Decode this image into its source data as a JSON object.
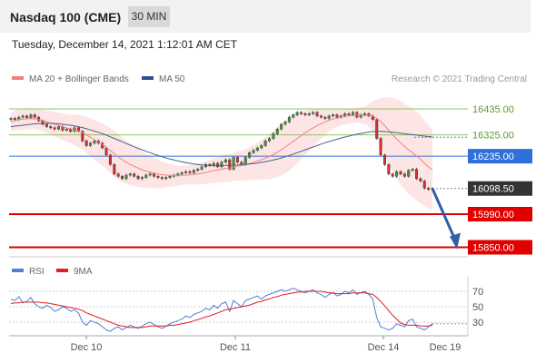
{
  "header": {
    "title": "Nasdaq 100 (CME)",
    "timeframe": "30 MIN",
    "timestamp": "Tuesday, December 14, 2021 1:12:01 AM CET"
  },
  "legend": {
    "items": [
      {
        "label": "MA 20 + Bollinger Bands",
        "color": "#f08080"
      },
      {
        "label": "MA 50",
        "color": "#2f4f8f"
      }
    ],
    "credit": "Research © 2021 Trading Central"
  },
  "rsi_legend": {
    "items": [
      {
        "label": "RSI",
        "color": "#4f7fd9"
      },
      {
        "label": "9MA",
        "color": "#e02020"
      }
    ]
  },
  "chart_data": [
    {
      "type": "candlestick",
      "ylim": [
        15800,
        16500
      ],
      "levels": [
        {
          "value": 16435.0,
          "label": "16435.00",
          "kind": "resistance",
          "color": "#8dc563"
        },
        {
          "value": 16325.0,
          "label": "16325.00",
          "kind": "resistance",
          "color": "#8dc563"
        },
        {
          "value": 16235.0,
          "label": "16235.00",
          "kind": "pivot",
          "color": "#2f6fd9"
        },
        {
          "value": 16098.5,
          "label": "16098.50",
          "kind": "last",
          "color": "#333333"
        },
        {
          "value": 15990.0,
          "label": "15990.00",
          "kind": "support",
          "color": "#e00000"
        },
        {
          "value": 15850.0,
          "label": "15850.00",
          "kind": "support",
          "color": "#e00000"
        }
      ],
      "x_ticks": [
        "Dec 10",
        "Dec 11",
        "Dec 14",
        "Dec 19"
      ],
      "forecast": {
        "from": 16098.5,
        "to": 15850.0,
        "direction": "down",
        "color": "#2f5fa5"
      },
      "closes": [
        16395,
        16390,
        16400,
        16405,
        16398,
        16410,
        16400,
        16385,
        16370,
        16360,
        16355,
        16350,
        16360,
        16345,
        16350,
        16340,
        16355,
        16340,
        16300,
        16280,
        16290,
        16300,
        16290,
        16270,
        16240,
        16200,
        16160,
        16150,
        16140,
        16155,
        16160,
        16150,
        16140,
        16145,
        16155,
        16160,
        16150,
        16145,
        16140,
        16145,
        16150,
        16155,
        16160,
        16165,
        16170,
        16165,
        16175,
        16180,
        16190,
        16200,
        16195,
        16205,
        16190,
        16210,
        16220,
        16180,
        16230,
        16210,
        16200,
        16230,
        16250,
        16260,
        16270,
        16280,
        16300,
        16310,
        16330,
        16350,
        16370,
        16380,
        16400,
        16410,
        16420,
        16415,
        16410,
        16415,
        16420,
        16405,
        16400,
        16395,
        16405,
        16410,
        16400,
        16405,
        16415,
        16410,
        16420,
        16400,
        16410,
        16415,
        16405,
        16390,
        16310,
        16240,
        16200,
        16160,
        16150,
        16170,
        16160,
        16150,
        16175,
        16180,
        16140,
        16130,
        16100,
        16095,
        16098.5
      ],
      "ma20": [
        16380,
        16385,
        16390,
        16392,
        16393,
        16394,
        16393,
        16390,
        16386,
        16380,
        16375,
        16370,
        16365,
        16360,
        16355,
        16350,
        16345,
        16342,
        16335,
        16325,
        16315,
        16305,
        16295,
        16285,
        16272,
        16260,
        16245,
        16232,
        16220,
        16210,
        16200,
        16192,
        16185,
        16178,
        16172,
        16168,
        16163,
        16160,
        16157,
        16155,
        16154,
        16153,
        16153,
        16154,
        16155,
        16156,
        16158,
        16160,
        16163,
        16166,
        16170,
        16174,
        16176,
        16180,
        16184,
        16185,
        16190,
        16193,
        16195,
        16199,
        16204,
        16208,
        16214,
        16220,
        16227,
        16234,
        16242,
        16252,
        16262,
        16274,
        16286,
        16298,
        16310,
        16322,
        16334,
        16345,
        16355,
        16364,
        16372,
        16380,
        16387,
        16392,
        16396,
        16400,
        16403,
        16405,
        16407,
        16408,
        16408,
        16408,
        16408,
        16405,
        16395,
        16381,
        16364,
        16345,
        16325,
        16308,
        16292,
        16276,
        16262,
        16250,
        16236,
        16222,
        16205,
        16190,
        16178
      ],
      "ma50": [
        16360,
        16362,
        16364,
        16366,
        16368,
        16370,
        16372,
        16373,
        16374,
        16374,
        16374,
        16373,
        16372,
        16370,
        16368,
        16366,
        16363,
        16360,
        16356,
        16351,
        16346,
        16341,
        16336,
        16330,
        16324,
        16317,
        16310,
        16303,
        16296,
        16289,
        16282,
        16275,
        16268,
        16262,
        16256,
        16250,
        16244,
        16238,
        16233,
        16228,
        16223,
        16219,
        16215,
        16211,
        16208,
        16205,
        16202,
        16200,
        16198,
        16197,
        16196,
        16195,
        16195,
        16195,
        16196,
        16196,
        16197,
        16198,
        16199,
        16200,
        16202,
        16204,
        16206,
        16209,
        16212,
        16215,
        16219,
        16223,
        16228,
        16233,
        16238,
        16244,
        16250,
        16256,
        16262,
        16268,
        16274,
        16280,
        16286,
        16292,
        16297,
        16302,
        16307,
        16312,
        16316,
        16320,
        16324,
        16328,
        16331,
        16334,
        16337,
        16339,
        16340,
        16340,
        16339,
        16338,
        16336,
        16334,
        16332,
        16330,
        16328,
        16326,
        16324,
        16322,
        16320,
        16318,
        16316
      ],
      "band_half": [
        40,
        42,
        44,
        45,
        45,
        44,
        43,
        44,
        46,
        48,
        50,
        52,
        54,
        56,
        58,
        60,
        64,
        68,
        72,
        76,
        80,
        84,
        88,
        90,
        92,
        94,
        96,
        96,
        95,
        92,
        88,
        84,
        80,
        76,
        72,
        68,
        64,
        60,
        56,
        52,
        48,
        45,
        42,
        40,
        40,
        40,
        42,
        44,
        46,
        48,
        50,
        52,
        54,
        56,
        58,
        58,
        60,
        62,
        64,
        66,
        70,
        74,
        78,
        84,
        90,
        96,
        100,
        104,
        108,
        112,
        112,
        110,
        106,
        100,
        94,
        88,
        80,
        72,
        64,
        56,
        48,
        42,
        38,
        35,
        33,
        32,
        32,
        32,
        34,
        38,
        48,
        62,
        80,
        100,
        120,
        140,
        156,
        168,
        176,
        182,
        186,
        188,
        188,
        186,
        182,
        176,
        170
      ]
    },
    {
      "type": "line",
      "ylim": [
        0,
        100
      ],
      "y_ticks": [
        70,
        50,
        30
      ],
      "series_names": [
        "RSI",
        "9MA"
      ],
      "rsi": [
        60,
        58,
        63,
        55,
        57,
        62,
        54,
        50,
        48,
        52,
        49,
        44,
        46,
        50,
        48,
        44,
        46,
        42,
        30,
        26,
        32,
        30,
        28,
        24,
        20,
        18,
        22,
        24,
        20,
        23,
        26,
        24,
        22,
        25,
        28,
        30,
        27,
        24,
        22,
        25,
        28,
        30,
        32,
        34,
        38,
        36,
        40,
        42,
        44,
        48,
        46,
        52,
        48,
        54,
        56,
        44,
        58,
        54,
        50,
        58,
        60,
        62,
        64,
        60,
        64,
        66,
        68,
        70,
        72,
        70,
        72,
        74,
        72,
        70,
        68,
        70,
        72,
        68,
        66,
        62,
        66,
        68,
        64,
        66,
        70,
        68,
        72,
        66,
        68,
        70,
        66,
        60,
        36,
        24,
        22,
        20,
        22,
        28,
        26,
        24,
        32,
        34,
        24,
        22,
        20,
        24,
        28
      ],
      "ma9": [
        54,
        55,
        55,
        56,
        56,
        56,
        56,
        56,
        55,
        55,
        54,
        53,
        52,
        51,
        50,
        49,
        48,
        47,
        45,
        42,
        40,
        38,
        36,
        34,
        32,
        30,
        28,
        26,
        25,
        24,
        23,
        23,
        23,
        23,
        24,
        25,
        25,
        25,
        25,
        25,
        26,
        26,
        27,
        28,
        29,
        30,
        32,
        33,
        35,
        37,
        38,
        40,
        42,
        44,
        46,
        47,
        48,
        49,
        50,
        51,
        52,
        54,
        56,
        57,
        59,
        60,
        62,
        63,
        65,
        66,
        67,
        68,
        69,
        69,
        70,
        70,
        70,
        70,
        70,
        69,
        68,
        68,
        67,
        67,
        67,
        67,
        68,
        68,
        68,
        68,
        67,
        66,
        62,
        57,
        51,
        45,
        39,
        34,
        29,
        27,
        26,
        26,
        26,
        25,
        25,
        25,
        26
      ]
    }
  ]
}
